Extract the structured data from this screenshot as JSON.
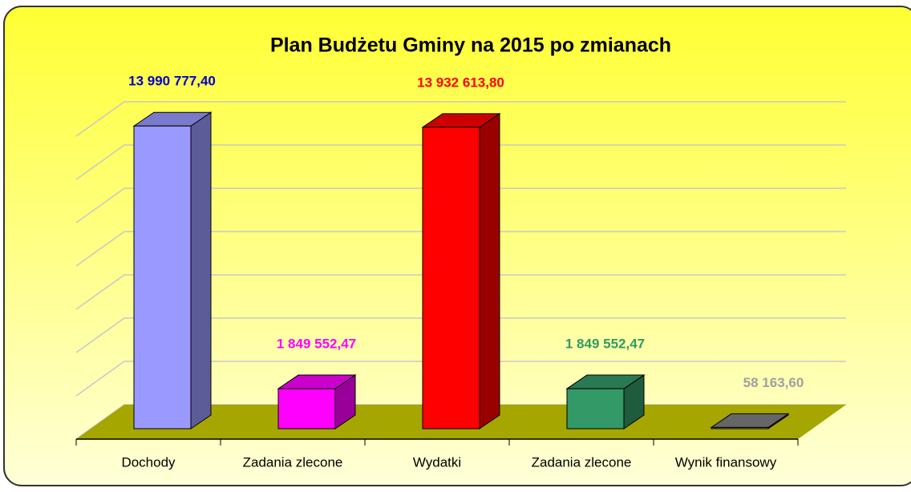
{
  "chart_data": {
    "type": "bar3d",
    "title": "Plan Budżetu Gminy na 2015 po zmianach",
    "categories": [
      "Dochody",
      "Zadania zlecone",
      "Wydatki",
      "Zadania zlecone",
      "Wynik finansowy"
    ],
    "values": [
      13990777.4,
      1849552.47,
      13932613.8,
      1849552.47,
      58163.6
    ],
    "value_labels": [
      "13 990 777,40",
      "1 849 552,47",
      "13 932 613,80",
      "1 849 552,47",
      "58 163,60"
    ],
    "colors": [
      "#9999ff",
      "#ff00ff",
      "#ff0000",
      "#339966",
      "#808080"
    ],
    "label_colors": [
      "#0000cc",
      "#ff00ff",
      "#ff0000",
      "#339966",
      "#a0a0a0"
    ],
    "ylim": [
      0,
      14000000
    ],
    "yticks": [
      0,
      2000000,
      4000000,
      6000000,
      8000000,
      10000000,
      12000000,
      14000000
    ],
    "grid": true
  }
}
